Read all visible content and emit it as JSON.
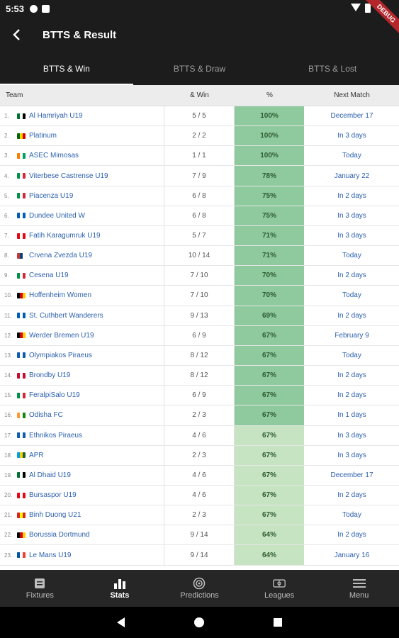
{
  "status": {
    "time": "5:53"
  },
  "debug_label": "DEBUG",
  "header": {
    "title": "BTTS & Result"
  },
  "tabs": [
    {
      "label": "BTTS & Win"
    },
    {
      "label": "BTTS & Draw"
    },
    {
      "label": "BTTS & Lost"
    }
  ],
  "table": {
    "columns": {
      "team": "Team",
      "win": "& Win",
      "pct": "%",
      "next": "Next Match"
    },
    "rows": [
      {
        "n": "1.",
        "flag": [
          "#00732f",
          "#ffffff",
          "#000000"
        ],
        "team": "Al Hamriyah U19",
        "win": "5 / 5",
        "pct": "100%",
        "next": "December 17",
        "shade": "#8fca9f"
      },
      {
        "n": "2.",
        "flag": [
          "#006400",
          "#ffd200",
          "#d40000"
        ],
        "team": "Platinum",
        "win": "2 / 2",
        "pct": "100%",
        "next": "In 3 days",
        "shade": "#8fca9f"
      },
      {
        "n": "3.",
        "flag": [
          "#f77f00",
          "#ffffff",
          "#009e60"
        ],
        "team": "ASEC Mimosas",
        "win": "1 / 1",
        "pct": "100%",
        "next": "Today",
        "shade": "#8fca9f"
      },
      {
        "n": "4.",
        "flag": [
          "#009246",
          "#ffffff",
          "#ce2b37"
        ],
        "team": "Viterbese Castrense U19",
        "win": "7 / 9",
        "pct": "78%",
        "next": "January 22",
        "shade": "#8fca9f"
      },
      {
        "n": "5.",
        "flag": [
          "#009246",
          "#ffffff",
          "#ce2b37"
        ],
        "team": "Piacenza U19",
        "win": "6 / 8",
        "pct": "75%",
        "next": "In 2 days",
        "shade": "#8fca9f"
      },
      {
        "n": "6.",
        "flag": [
          "#005eb8",
          "#ffffff",
          "#005eb8"
        ],
        "team": "Dundee United W",
        "win": "6 / 8",
        "pct": "75%",
        "next": "In 3 days",
        "shade": "#8fca9f"
      },
      {
        "n": "7.",
        "flag": [
          "#e30a17",
          "#ffffff",
          "#e30a17"
        ],
        "team": "Fatih Karagumruk U19",
        "win": "5 / 7",
        "pct": "71%",
        "next": "In 3 days",
        "shade": "#8fca9f"
      },
      {
        "n": "8.",
        "flag": [
          "#c6363c",
          "#0c4076",
          "#ffffff"
        ],
        "team": "Crvena Zvezda U19",
        "win": "10 / 14",
        "pct": "71%",
        "next": "Today",
        "shade": "#8fca9f"
      },
      {
        "n": "9.",
        "flag": [
          "#009246",
          "#ffffff",
          "#ce2b37"
        ],
        "team": "Cesena U19",
        "win": "7 / 10",
        "pct": "70%",
        "next": "In 2 days",
        "shade": "#8fca9f"
      },
      {
        "n": "10.",
        "flag": [
          "#000000",
          "#dd0000",
          "#ffce00"
        ],
        "team": "Hoffenheim Women",
        "win": "7 / 10",
        "pct": "70%",
        "next": "Today",
        "shade": "#8fca9f"
      },
      {
        "n": "11.",
        "flag": [
          "#005eb8",
          "#ffffff",
          "#005eb8"
        ],
        "team": "St. Cuthbert Wanderers",
        "win": "9 / 13",
        "pct": "69%",
        "next": "In 2 days",
        "shade": "#8fca9f"
      },
      {
        "n": "12.",
        "flag": [
          "#000000",
          "#dd0000",
          "#ffce00"
        ],
        "team": "Werder Bremen U19",
        "win": "6 / 9",
        "pct": "67%",
        "next": "February 9",
        "shade": "#8fca9f"
      },
      {
        "n": "13.",
        "flag": [
          "#0d5eaf",
          "#ffffff",
          "#0d5eaf"
        ],
        "team": "Olympiakos Piraeus",
        "win": "8 / 12",
        "pct": "67%",
        "next": "Today",
        "shade": "#8fca9f"
      },
      {
        "n": "14.",
        "flag": [
          "#c60c30",
          "#ffffff",
          "#c60c30"
        ],
        "team": "Brondby U19",
        "win": "8 / 12",
        "pct": "67%",
        "next": "In 2 days",
        "shade": "#8fca9f"
      },
      {
        "n": "15.",
        "flag": [
          "#009246",
          "#ffffff",
          "#ce2b37"
        ],
        "team": "FeralpiSalo U19",
        "win": "6 / 9",
        "pct": "67%",
        "next": "In 2 days",
        "shade": "#8fca9f"
      },
      {
        "n": "16.",
        "flag": [
          "#ff9933",
          "#ffffff",
          "#138808"
        ],
        "team": "Odisha FC",
        "win": "2 / 3",
        "pct": "67%",
        "next": "In 1 days",
        "shade": "#8fca9f"
      },
      {
        "n": "17.",
        "flag": [
          "#0d5eaf",
          "#ffffff",
          "#0d5eaf"
        ],
        "team": "Ethnikos Piraeus",
        "win": "4 / 6",
        "pct": "67%",
        "next": "In 3 days",
        "shade": "#c6e4c2"
      },
      {
        "n": "18.",
        "flag": [
          "#00a1de",
          "#fad201",
          "#20603d"
        ],
        "team": "APR",
        "win": "2 / 3",
        "pct": "67%",
        "next": "In 3 days",
        "shade": "#c6e4c2"
      },
      {
        "n": "19.",
        "flag": [
          "#00732f",
          "#ffffff",
          "#000000"
        ],
        "team": "Al Dhaid U19",
        "win": "4 / 6",
        "pct": "67%",
        "next": "December 17",
        "shade": "#c6e4c2"
      },
      {
        "n": "20.",
        "flag": [
          "#e30a17",
          "#ffffff",
          "#e30a17"
        ],
        "team": "Bursaspor U19",
        "win": "4 / 6",
        "pct": "67%",
        "next": "In 2 days",
        "shade": "#c6e4c2"
      },
      {
        "n": "21.",
        "flag": [
          "#da251d",
          "#ffff00",
          "#da251d"
        ],
        "team": "Binh Duong U21",
        "win": "2 / 3",
        "pct": "67%",
        "next": "Today",
        "shade": "#c6e4c2"
      },
      {
        "n": "22.",
        "flag": [
          "#000000",
          "#dd0000",
          "#ffce00"
        ],
        "team": "Borussia Dortmund",
        "win": "9 / 14",
        "pct": "64%",
        "next": "In 2 days",
        "shade": "#c6e4c2"
      },
      {
        "n": "23.",
        "flag": [
          "#0055a4",
          "#ffffff",
          "#ef4135"
        ],
        "team": "Le Mans U19",
        "win": "9 / 14",
        "pct": "64%",
        "next": "January 16",
        "shade": "#c6e4c2"
      }
    ]
  },
  "bottom_nav": [
    {
      "label": "Fixtures",
      "icon": "fixtures-icon",
      "active": false
    },
    {
      "label": "Stats",
      "icon": "stats-icon",
      "active": true
    },
    {
      "label": "Predictions",
      "icon": "predictions-icon",
      "active": false
    },
    {
      "label": "Leagues",
      "icon": "leagues-icon",
      "active": false
    },
    {
      "label": "Menu",
      "icon": "menu-icon",
      "active": false
    }
  ]
}
